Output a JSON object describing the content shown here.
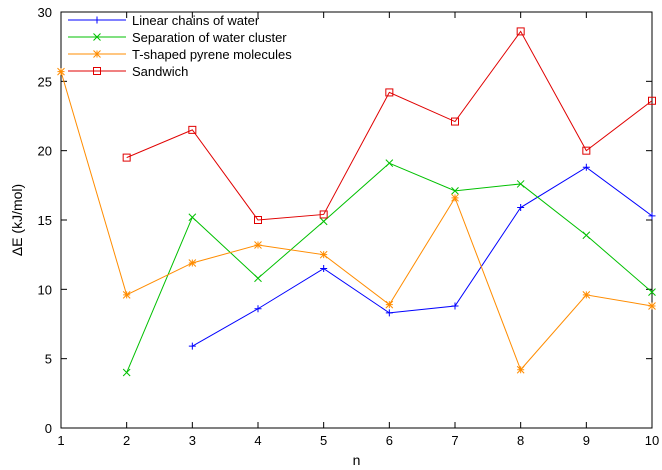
{
  "chart_data": {
    "type": "line",
    "xlabel": "n",
    "ylabel": "ΔE (kJ/mol)",
    "xlim": [
      1,
      10
    ],
    "ylim": [
      0,
      30
    ],
    "x_ticks": [
      "1",
      "2",
      "3",
      "4",
      "5",
      "6",
      "7",
      "8",
      "9",
      "10"
    ],
    "y_ticks": [
      "0",
      "5",
      "10",
      "15",
      "20",
      "25",
      "30"
    ],
    "grid": false,
    "legend_position": "top-left",
    "series": [
      {
        "name": "Linear chains of water",
        "color": "#0000ff",
        "marker": "plus",
        "points": [
          [
            3,
            5.9
          ],
          [
            4,
            8.6
          ],
          [
            5,
            11.5
          ],
          [
            6,
            8.3
          ],
          [
            7,
            8.8
          ],
          [
            8,
            15.9
          ],
          [
            9,
            18.8
          ],
          [
            10,
            15.3
          ]
        ]
      },
      {
        "name": "Separation of water cluster",
        "color": "#00c000",
        "marker": "cross",
        "points": [
          [
            2,
            4.0
          ],
          [
            3,
            15.2
          ],
          [
            4,
            10.8
          ],
          [
            5,
            14.9
          ],
          [
            6,
            19.1
          ],
          [
            7,
            17.1
          ],
          [
            8,
            17.6
          ],
          [
            9,
            13.9
          ],
          [
            10,
            9.8
          ]
        ]
      },
      {
        "name": "T-shaped pyrene molecules",
        "color": "#ff8c00",
        "marker": "star",
        "points": [
          [
            1,
            25.7
          ],
          [
            2,
            9.6
          ],
          [
            3,
            11.9
          ],
          [
            4,
            13.2
          ],
          [
            5,
            12.5
          ],
          [
            6,
            8.9
          ],
          [
            7,
            16.6
          ],
          [
            8,
            4.2
          ],
          [
            9,
            9.6
          ],
          [
            10,
            8.8
          ]
        ]
      },
      {
        "name": "Sandwich",
        "color": "#e00000",
        "marker": "square",
        "points": [
          [
            2,
            19.5
          ],
          [
            3,
            21.5
          ],
          [
            4,
            15.0
          ],
          [
            5,
            15.4
          ],
          [
            6,
            24.2
          ],
          [
            7,
            22.1
          ],
          [
            8,
            28.6
          ],
          [
            9,
            20.0
          ],
          [
            10,
            23.6
          ]
        ]
      }
    ]
  }
}
